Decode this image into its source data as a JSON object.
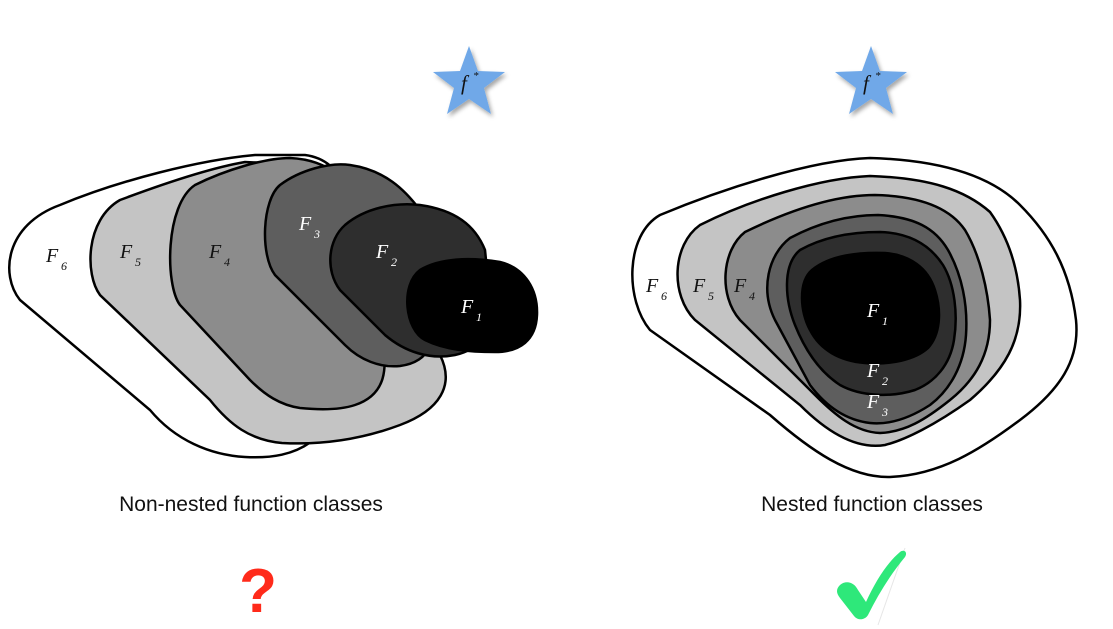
{
  "left_panel": {
    "title": "Non-nested function classes",
    "target_label": "f",
    "target_sup": "*",
    "classes": [
      {
        "name": "F",
        "sub": "6",
        "fill": "#ffffff"
      },
      {
        "name": "F",
        "sub": "5",
        "fill": "#c4c4c4"
      },
      {
        "name": "F",
        "sub": "4",
        "fill": "#8c8c8c"
      },
      {
        "name": "F",
        "sub": "3",
        "fill": "#5e5e5e"
      },
      {
        "name": "F",
        "sub": "2",
        "fill": "#2e2e2e"
      },
      {
        "name": "F",
        "sub": "1",
        "fill": "#000000"
      }
    ],
    "verdict": "?",
    "verdict_color": "#ff2a1a"
  },
  "right_panel": {
    "title": "Nested function classes",
    "target_label": "f",
    "target_sup": "*",
    "classes": [
      {
        "name": "F",
        "sub": "6",
        "fill": "#ffffff"
      },
      {
        "name": "F",
        "sub": "5",
        "fill": "#c4c4c4"
      },
      {
        "name": "F",
        "sub": "4",
        "fill": "#8c8c8c"
      },
      {
        "name": "F",
        "sub": "3",
        "fill": "#5e5e5e"
      },
      {
        "name": "F",
        "sub": "2",
        "fill": "#2e2e2e"
      },
      {
        "name": "F",
        "sub": "1",
        "fill": "#000000"
      }
    ],
    "verdict": "✔",
    "verdict_color": "#2ee87a"
  },
  "colors": {
    "star": "#6fa8e8",
    "outline": "#000000"
  }
}
